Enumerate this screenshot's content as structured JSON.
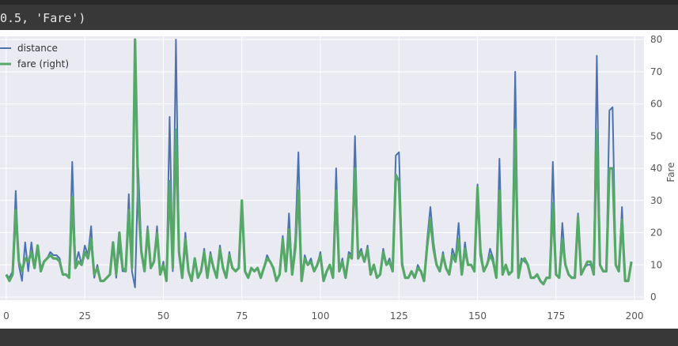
{
  "output": {
    "text": "0.5, 'Fare')"
  },
  "chart_data": {
    "type": "line",
    "ylabel_right": "Fare",
    "legend": [
      "distance",
      "fare (right)"
    ],
    "legend_position": "top-left",
    "grid": true,
    "xlim": [
      -2,
      203
    ],
    "ylim_right": [
      0,
      82
    ],
    "xticks": [
      0,
      25,
      50,
      75,
      100,
      125,
      150,
      175,
      200
    ],
    "yticks_right": [
      0,
      10,
      20,
      30,
      40,
      50,
      60,
      70,
      80
    ],
    "colors": {
      "distance": "#4c72b0",
      "fare": "#55a868"
    },
    "series": [
      {
        "name": "distance",
        "values": [
          7,
          6,
          8,
          33,
          10,
          5,
          17,
          8,
          17,
          9,
          16,
          8,
          11,
          12,
          14,
          13,
          13,
          12,
          7,
          7,
          6,
          42,
          10,
          14,
          10,
          16,
          13,
          22,
          6,
          10,
          5,
          5,
          6,
          7,
          17,
          6,
          16,
          8,
          8,
          32,
          8,
          3,
          40,
          15,
          8,
          22,
          9,
          11,
          22,
          7,
          11,
          5,
          56,
          8,
          80,
          14,
          6,
          20,
          8,
          5,
          12,
          6,
          8,
          15,
          6,
          14,
          9,
          6,
          16,
          9,
          6,
          14,
          9,
          8,
          9,
          30,
          8,
          6,
          9,
          8,
          9,
          6,
          9,
          13,
          11,
          9,
          5,
          7,
          19,
          8,
          26,
          7,
          18,
          45,
          5,
          13,
          10,
          12,
          8,
          10,
          14,
          5,
          8,
          10,
          6,
          40,
          8,
          12,
          6,
          14,
          13,
          50,
          13,
          15,
          11,
          16,
          7,
          10,
          6,
          7,
          15,
          10,
          12,
          8,
          44,
          45,
          11,
          6,
          6,
          8,
          6,
          10,
          8,
          5,
          18,
          28,
          17,
          10,
          8,
          14,
          9,
          7,
          15,
          12,
          23,
          7,
          17,
          10,
          10,
          8,
          35,
          15,
          8,
          10,
          15,
          12,
          6,
          43,
          7,
          10,
          7,
          8,
          70,
          6,
          12,
          11,
          10,
          6,
          6,
          7,
          5,
          4,
          6,
          6,
          42,
          7,
          6,
          23,
          10,
          7,
          6,
          6,
          26,
          7,
          9,
          10,
          10,
          7,
          75,
          10,
          8,
          8,
          58,
          59,
          10,
          8,
          28,
          5,
          5,
          11
        ]
      },
      {
        "name": "fare (right)",
        "values": [
          7,
          5,
          7,
          27,
          11,
          8,
          12,
          11,
          14,
          9,
          16,
          8,
          11,
          12,
          13,
          12,
          12,
          11,
          7,
          7,
          6,
          31,
          9,
          11,
          10,
          14,
          12,
          18,
          7,
          9,
          5,
          5,
          6,
          7,
          17,
          7,
          20,
          9,
          8,
          27,
          9,
          80,
          30,
          14,
          8,
          21,
          9,
          11,
          20,
          7,
          10,
          5,
          36,
          9,
          52,
          14,
          6,
          18,
          8,
          5,
          12,
          6,
          8,
          14,
          6,
          13,
          9,
          6,
          15,
          9,
          6,
          13,
          9,
          8,
          9,
          30,
          8,
          6,
          9,
          8,
          9,
          6,
          9,
          12,
          11,
          9,
          5,
          7,
          18,
          8,
          21,
          7,
          15,
          33,
          5,
          12,
          10,
          11,
          8,
          10,
          13,
          5,
          8,
          10,
          6,
          33,
          8,
          11,
          6,
          13,
          12,
          40,
          12,
          14,
          11,
          15,
          7,
          10,
          6,
          7,
          14,
          10,
          11,
          8,
          38,
          36,
          10,
          6,
          6,
          8,
          6,
          9,
          8,
          5,
          16,
          24,
          15,
          10,
          8,
          13,
          9,
          7,
          13,
          11,
          18,
          7,
          15,
          10,
          10,
          8,
          34,
          13,
          8,
          10,
          13,
          11,
          6,
          33,
          7,
          10,
          7,
          8,
          52,
          6,
          11,
          12,
          10,
          6,
          6,
          7,
          5,
          4,
          6,
          6,
          29,
          7,
          6,
          18,
          10,
          7,
          6,
          6,
          25,
          7,
          9,
          11,
          11,
          7,
          52,
          10,
          8,
          8,
          40,
          40,
          10,
          8,
          24,
          5,
          5,
          11
        ]
      }
    ]
  }
}
